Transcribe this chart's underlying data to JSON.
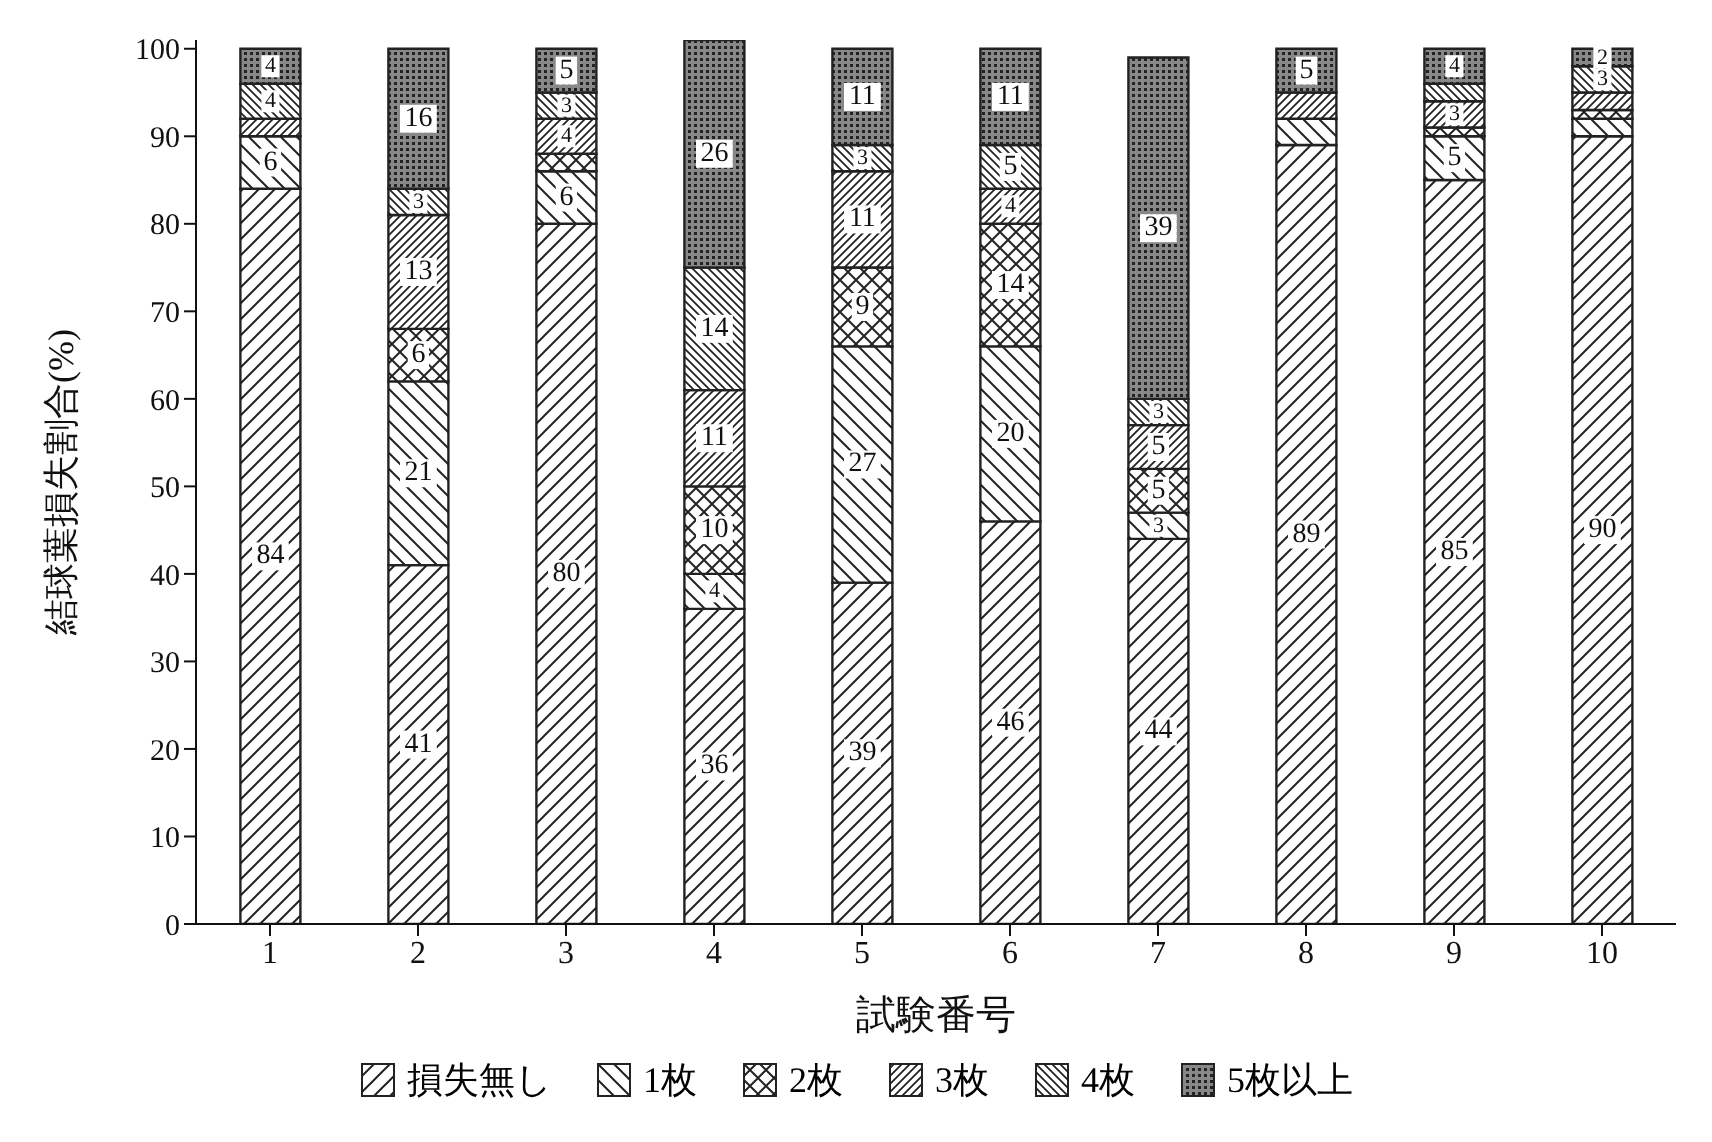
{
  "chart_data": {
    "type": "bar",
    "stacked": true,
    "xlabel": "試験番号",
    "ylabel": "結球葉損失割合(%)",
    "categories": [
      "1",
      "2",
      "3",
      "4",
      "5",
      "6",
      "7",
      "8",
      "9",
      "10"
    ],
    "series": [
      {
        "name": "損失無し",
        "color": "#222222",
        "values": [
          84,
          41,
          80,
          36,
          39,
          46,
          44,
          89,
          85,
          90
        ],
        "value_labels": [
          "84",
          "41",
          "80",
          "36",
          "39",
          "46",
          "44",
          "89",
          "85",
          "90"
        ]
      },
      {
        "name": "1枚",
        "color": "#222222",
        "values": [
          6,
          21,
          6,
          4,
          27,
          20,
          3,
          3,
          5,
          2
        ],
        "value_labels": [
          "6",
          "21",
          "6",
          "4",
          "27",
          "20",
          "3",
          null,
          "5",
          null
        ]
      },
      {
        "name": "2枚",
        "color": "#222222",
        "values": [
          0,
          6,
          2,
          10,
          9,
          14,
          5,
          0,
          1,
          1
        ],
        "value_labels": [
          null,
          "6",
          null,
          "10",
          "9",
          "14",
          "5",
          null,
          null,
          null
        ]
      },
      {
        "name": "3枚",
        "color": "#222222",
        "values": [
          2,
          13,
          4,
          11,
          11,
          4,
          5,
          3,
          3,
          2
        ],
        "value_labels": [
          null,
          "13",
          "4",
          "11",
          "11",
          "4",
          "5",
          null,
          "3",
          null
        ]
      },
      {
        "name": "4枚",
        "color": "#222222",
        "values": [
          4,
          3,
          3,
          14,
          3,
          5,
          3,
          0,
          2,
          3
        ],
        "value_labels": [
          "4",
          "3",
          "3",
          "14",
          "3",
          "5",
          "3",
          null,
          null,
          "3"
        ]
      },
      {
        "name": "5枚以上",
        "color": "#222222",
        "values": [
          4,
          16,
          5,
          26,
          11,
          11,
          39,
          5,
          4,
          2
        ],
        "value_labels": [
          "4",
          "16",
          "5",
          "26",
          "11",
          "11",
          "39",
          "5",
          "4",
          "2"
        ]
      }
    ],
    "ylim": [
      0,
      101
    ],
    "yticks": [
      0,
      10,
      20,
      30,
      40,
      50,
      60,
      70,
      80,
      90,
      100
    ],
    "grid": false,
    "legend": "bottom"
  }
}
